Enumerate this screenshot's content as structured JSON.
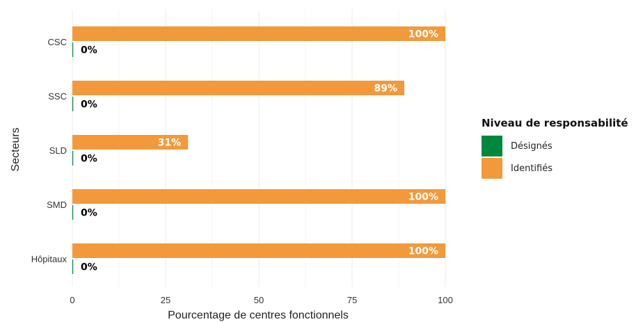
{
  "chart_data": {
    "type": "bar",
    "orientation": "horizontal",
    "xlabel": "Pourcentage de centres fonctionnels",
    "ylabel": "Secteurs",
    "xlim": [
      0,
      100
    ],
    "xticks": [
      "0",
      "25",
      "50",
      "75",
      "100"
    ],
    "categories": [
      "CSC",
      "SSC",
      "SLD",
      "SMD",
      "Hôpitaux"
    ],
    "series": [
      {
        "name": "Identifiés",
        "color": "#F29A3B",
        "values": [
          100,
          89,
          31,
          100,
          100
        ],
        "labels": [
          "100%",
          "89%",
          "31%",
          "100%",
          "100%"
        ]
      },
      {
        "name": "Désignés",
        "color": "#00873E",
        "values": [
          0,
          0,
          0,
          0,
          0
        ],
        "labels": [
          "0%",
          "0%",
          "0%",
          "0%",
          "0%"
        ]
      }
    ],
    "grid": true,
    "legend_position": "right"
  },
  "legend": {
    "title": "Niveau de responsabilité",
    "items": [
      {
        "label": "Désignés",
        "color": "#00873E"
      },
      {
        "label": "Identifiés",
        "color": "#F29A3B"
      }
    ]
  }
}
